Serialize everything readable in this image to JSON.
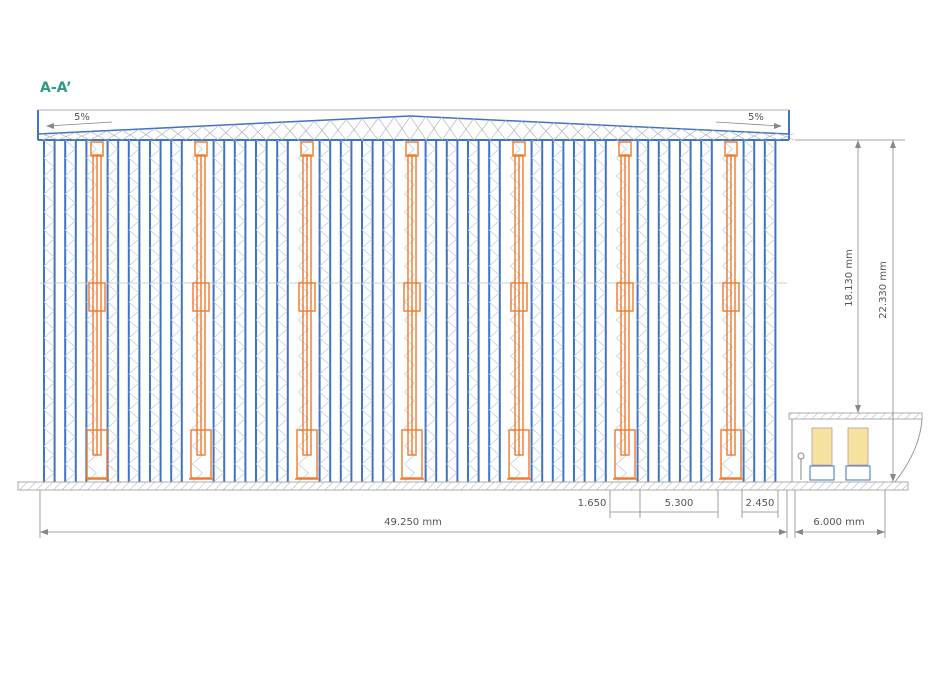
{
  "title": "A-A’",
  "roof_slopes": {
    "left": "5%",
    "right": "5%"
  },
  "dimensions": {
    "rack_height": "18.130 mm",
    "building_height": "22.330 mm",
    "gap": "1.650",
    "aisle": "5.300",
    "end_gap": "2.450",
    "total_length": "49.250 mm",
    "annex_length": "6.000 mm"
  }
}
